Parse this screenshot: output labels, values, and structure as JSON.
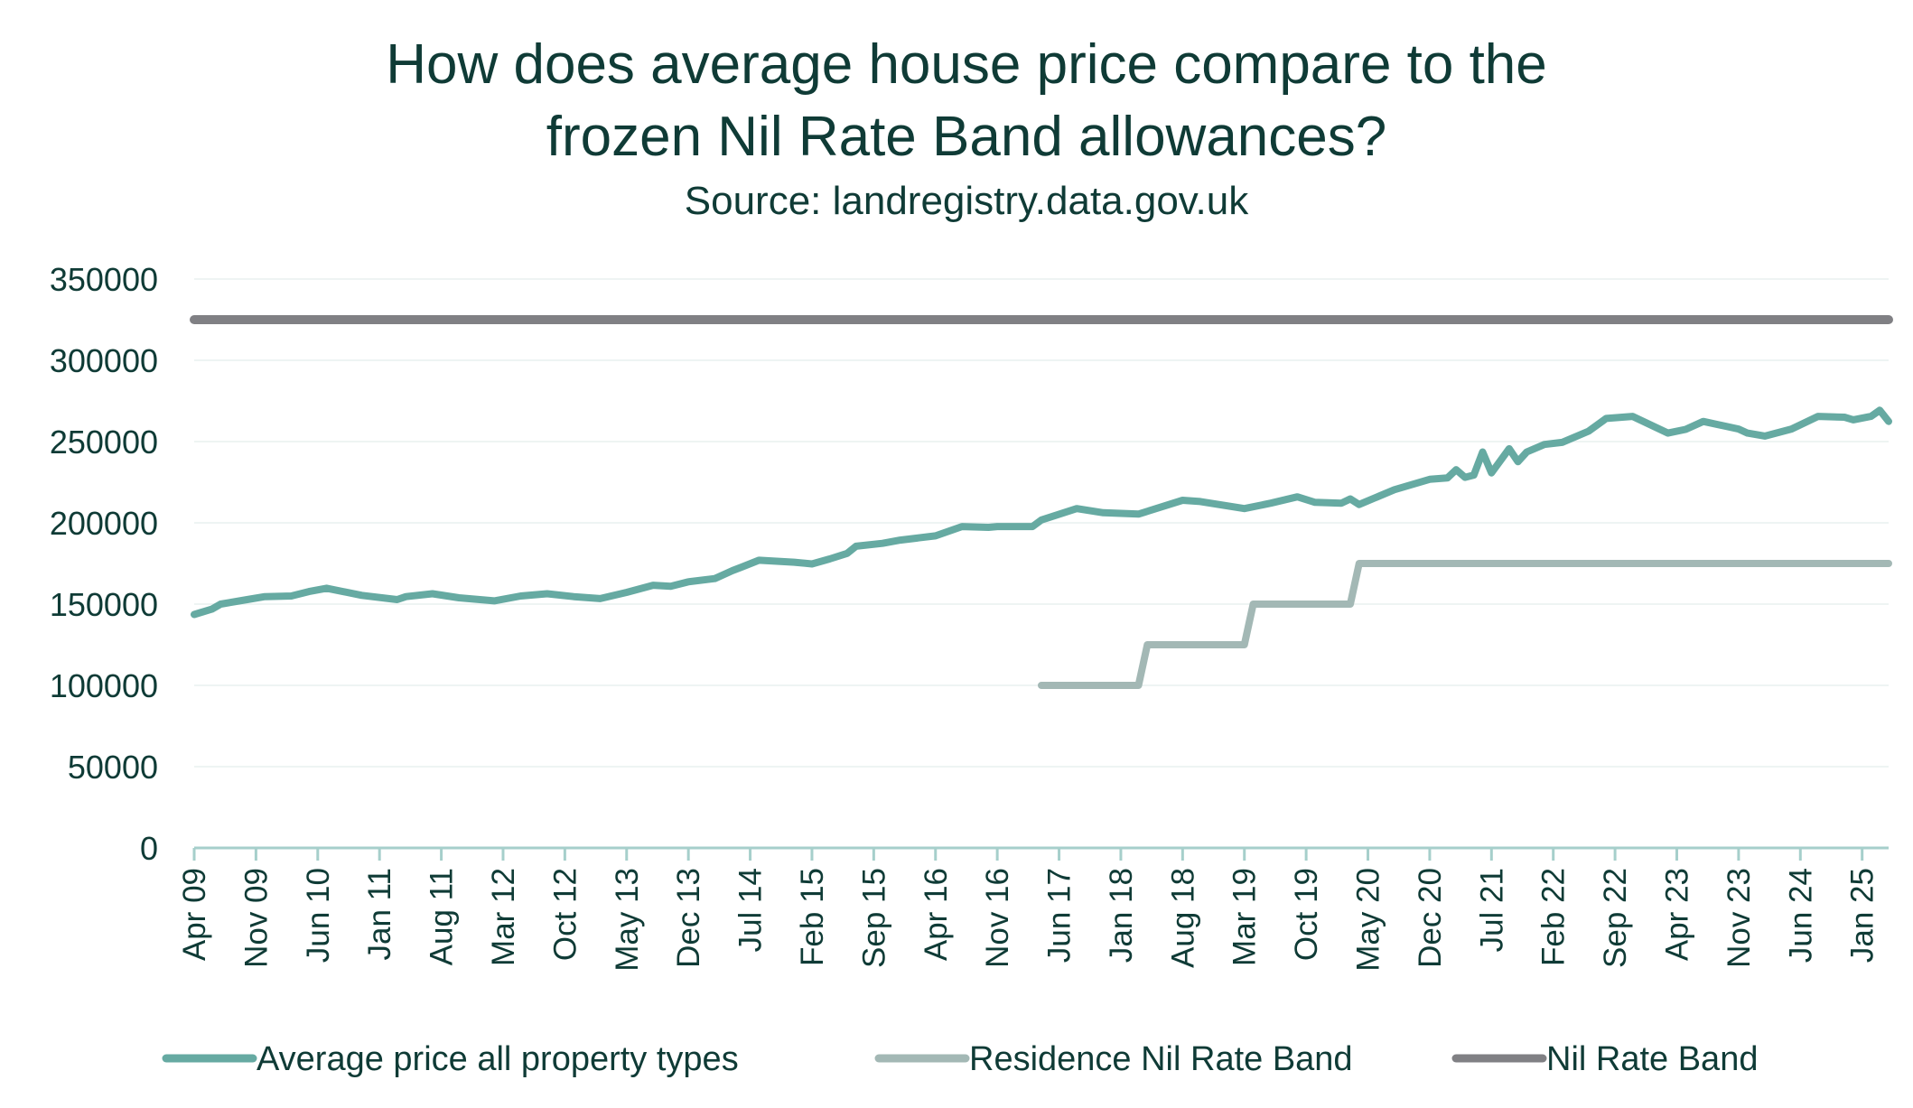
{
  "chart_data": {
    "type": "line",
    "title": "How does average house price compare to the frozen Nil Rate Band allowances?",
    "title_lines": [
      "How does average house price compare to the",
      "frozen Nil Rate Band allowances?"
    ],
    "subtitle": "Source: landregistry.data.gov.uk",
    "xlabel": "",
    "ylabel": "",
    "ylim": [
      0,
      350000
    ],
    "yticks": [
      "0",
      "50000",
      "100000",
      "150000",
      "200000",
      "250000",
      "300000",
      "350000"
    ],
    "xrange": [
      "2009-04",
      "2025-04"
    ],
    "xtick_labels": [
      "Apr 09",
      "Nov 09",
      "Jun 10",
      "Jan 11",
      "Aug 11",
      "Mar 12",
      "Oct 12",
      "May 13",
      "Dec 13",
      "Jul 14",
      "Feb 15",
      "Sep 15",
      "Apr 16",
      "Nov 16",
      "Jun 17",
      "Jan 18",
      "Aug 18",
      "Mar 19",
      "Oct 19",
      "May 20",
      "Dec 20",
      "Jul 21",
      "Feb 22",
      "Sep 22",
      "Apr 23",
      "Nov 23",
      "Jun 24",
      "Jan 25"
    ],
    "grid": true,
    "legend_position": "bottom",
    "series": [
      {
        "name": "Average price all property types",
        "color": "#66aaa2",
        "points": [
          [
            "2009-04",
            143600
          ],
          [
            "2009-06",
            146900
          ],
          [
            "2009-07",
            150000
          ],
          [
            "2009-10",
            152800
          ],
          [
            "2009-12",
            154600
          ],
          [
            "2010-03",
            155000
          ],
          [
            "2010-05",
            157700
          ],
          [
            "2010-07",
            159800
          ],
          [
            "2010-11",
            155400
          ],
          [
            "2011-03",
            152800
          ],
          [
            "2011-04",
            154600
          ],
          [
            "2011-07",
            156400
          ],
          [
            "2011-10",
            153900
          ],
          [
            "2012-02",
            152000
          ],
          [
            "2012-05",
            155000
          ],
          [
            "2012-08",
            156400
          ],
          [
            "2012-11",
            154600
          ],
          [
            "2013-02",
            153400
          ],
          [
            "2013-05",
            157200
          ],
          [
            "2013-08",
            161600
          ],
          [
            "2013-10",
            161000
          ],
          [
            "2013-12",
            163700
          ],
          [
            "2014-03",
            165700
          ],
          [
            "2014-05",
            170600
          ],
          [
            "2014-06",
            172700
          ],
          [
            "2014-08",
            177000
          ],
          [
            "2014-12",
            175800
          ],
          [
            "2015-02",
            174700
          ],
          [
            "2015-04",
            177800
          ],
          [
            "2015-06",
            181200
          ],
          [
            "2015-07",
            185600
          ],
          [
            "2015-10",
            187400
          ],
          [
            "2015-12",
            189400
          ],
          [
            "2016-04",
            192000
          ],
          [
            "2016-07",
            197700
          ],
          [
            "2016-10",
            197200
          ],
          [
            "2016-11",
            197700
          ],
          [
            "2017-03",
            197700
          ],
          [
            "2017-04",
            201800
          ],
          [
            "2017-08",
            208800
          ],
          [
            "2017-11",
            206200
          ],
          [
            "2018-03",
            205400
          ],
          [
            "2018-08",
            213900
          ],
          [
            "2018-10",
            213100
          ],
          [
            "2019-03",
            208800
          ],
          [
            "2019-06",
            212100
          ],
          [
            "2019-09",
            216000
          ],
          [
            "2019-11",
            212600
          ],
          [
            "2020-02",
            212100
          ],
          [
            "2020-03",
            214700
          ],
          [
            "2020-04",
            211300
          ],
          [
            "2020-08",
            220400
          ],
          [
            "2020-12",
            226800
          ],
          [
            "2021-02",
            227600
          ],
          [
            "2021-03",
            232700
          ],
          [
            "2021-04",
            228000
          ],
          [
            "2021-05",
            229400
          ],
          [
            "2021-06",
            243600
          ],
          [
            "2021-07",
            230700
          ],
          [
            "2021-09",
            245600
          ],
          [
            "2021-10",
            237600
          ],
          [
            "2021-11",
            243600
          ],
          [
            "2022-01",
            248200
          ],
          [
            "2022-03",
            249500
          ],
          [
            "2022-06",
            256400
          ],
          [
            "2022-08",
            264200
          ],
          [
            "2022-11",
            265500
          ],
          [
            "2023-03",
            255200
          ],
          [
            "2023-05",
            257500
          ],
          [
            "2023-07",
            262400
          ],
          [
            "2023-11",
            257700
          ],
          [
            "2023-12",
            255200
          ],
          [
            "2024-02",
            253400
          ],
          [
            "2024-05",
            257700
          ],
          [
            "2024-08",
            265500
          ],
          [
            "2024-11",
            265000
          ],
          [
            "2024-12",
            263400
          ],
          [
            "2025-02",
            265500
          ],
          [
            "2025-03",
            269300
          ],
          [
            "2025-04",
            262400
          ]
        ]
      },
      {
        "name": "Residence Nil Rate Band",
        "color": "#a3b8b5",
        "points": [
          [
            "2017-04",
            100000
          ],
          [
            "2018-03",
            100000
          ],
          [
            "2018-04",
            125000
          ],
          [
            "2019-03",
            125000
          ],
          [
            "2019-04",
            150000
          ],
          [
            "2020-03",
            150000
          ],
          [
            "2020-04",
            175000
          ],
          [
            "2025-04",
            175000
          ]
        ]
      },
      {
        "name": "Nil Rate Band",
        "color": "#808084",
        "points": [
          [
            "2009-04",
            325000
          ],
          [
            "2025-04",
            325000
          ]
        ]
      }
    ]
  },
  "colors": {
    "text": "#0f3b36",
    "axis": "#a6cfcb",
    "grid": "#eef4f3"
  }
}
